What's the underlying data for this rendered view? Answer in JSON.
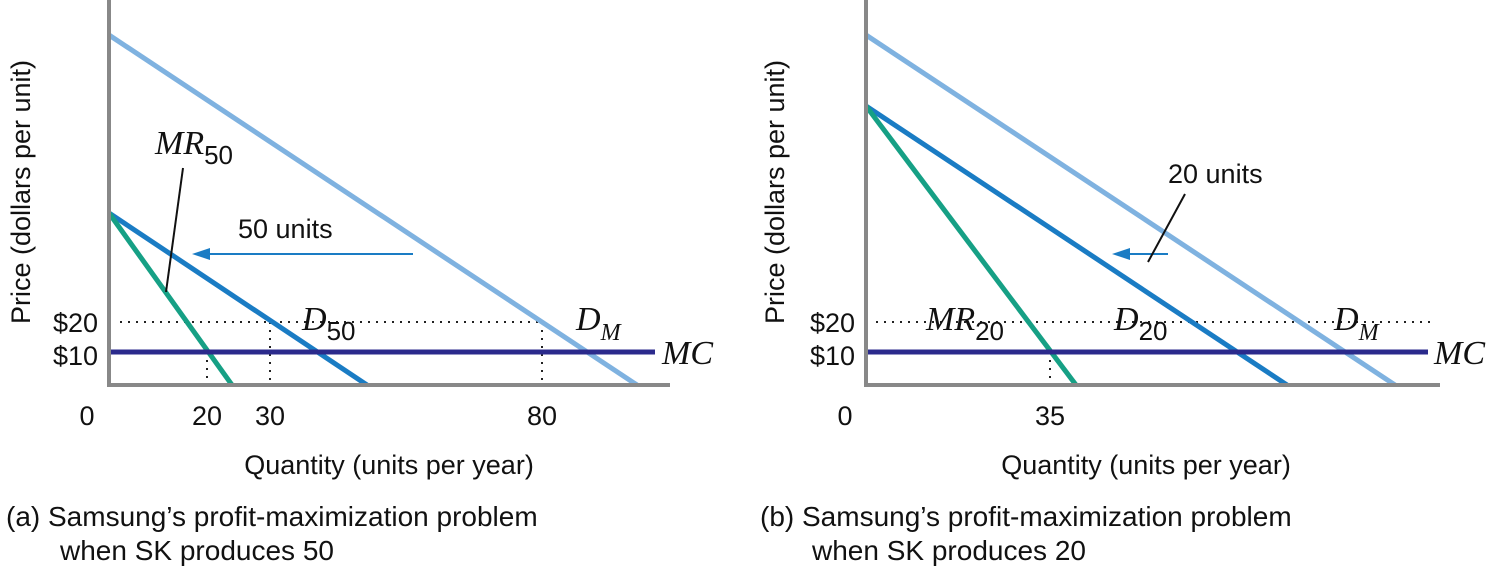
{
  "colors": {
    "market_demand": "#7fb2e0",
    "residual_demand": "#1a7cc4",
    "marginal_revenue": "#16a085",
    "marginal_cost": "#2b2a8c",
    "axis": "#888888",
    "text": "#111111"
  },
  "chart_data": [
    {
      "type": "line",
      "panel": "a",
      "caption_line1": "(a) Samsung’s profit-maximization problem",
      "caption_line2": "when SK produces 50",
      "xlabel": "Quantity (units per year)",
      "ylabel": "Price (dollars per unit)",
      "x_ticks": [
        "0",
        "20",
        "30",
        "80"
      ],
      "y_ticks": [
        "$20",
        "$10"
      ],
      "xlim": [
        0,
        100
      ],
      "ylim": [
        0,
        110
      ],
      "series": [
        {
          "id": "dm",
          "name": "D",
          "sub": "M",
          "points": [
            [
              0,
              110
            ],
            [
              100,
              0
            ]
          ]
        },
        {
          "id": "d",
          "name": "D",
          "sub": "50",
          "points": [
            [
              0,
              50
            ],
            [
              50,
              0
            ]
          ]
        },
        {
          "id": "mr",
          "name": "MR",
          "sub": "50",
          "points": [
            [
              0,
              50
            ],
            [
              25,
              0
            ]
          ]
        },
        {
          "id": "mc",
          "name": "MC",
          "sub": "",
          "points": [
            [
              0,
              10
            ],
            [
              100,
              10
            ]
          ]
        }
      ],
      "shift_label": "50 units",
      "guides": {
        "price_level": 20,
        "quantities_at_20": [
          15,
          30,
          80
        ],
        "quantity_at_mc": 20
      }
    },
    {
      "type": "line",
      "panel": "b",
      "caption_line1": "(b) Samsung’s profit-maximization problem",
      "caption_line2": "when SK produces 20",
      "xlabel": "Quantity (units per year)",
      "ylabel": "Price (dollars per unit)",
      "x_ticks": [
        "0",
        "35"
      ],
      "y_ticks": [
        "$20",
        "$10"
      ],
      "xlim": [
        0,
        100
      ],
      "ylim": [
        0,
        110
      ],
      "series": [
        {
          "id": "dm",
          "name": "D",
          "sub": "M",
          "points": [
            [
              0,
              110
            ],
            [
              100,
              0
            ]
          ]
        },
        {
          "id": "d",
          "name": "D",
          "sub": "20",
          "points": [
            [
              0,
              80
            ],
            [
              80,
              0
            ]
          ]
        },
        {
          "id": "mr",
          "name": "MR",
          "sub": "20",
          "points": [
            [
              0,
              80
            ],
            [
              40,
              0
            ]
          ]
        },
        {
          "id": "mc",
          "name": "MC",
          "sub": "",
          "points": [
            [
              0,
              10
            ],
            [
              100,
              10
            ]
          ]
        }
      ],
      "shift_label": "20 units",
      "guides": {
        "price_level": 20,
        "quantity_at_mc": 35
      }
    }
  ]
}
